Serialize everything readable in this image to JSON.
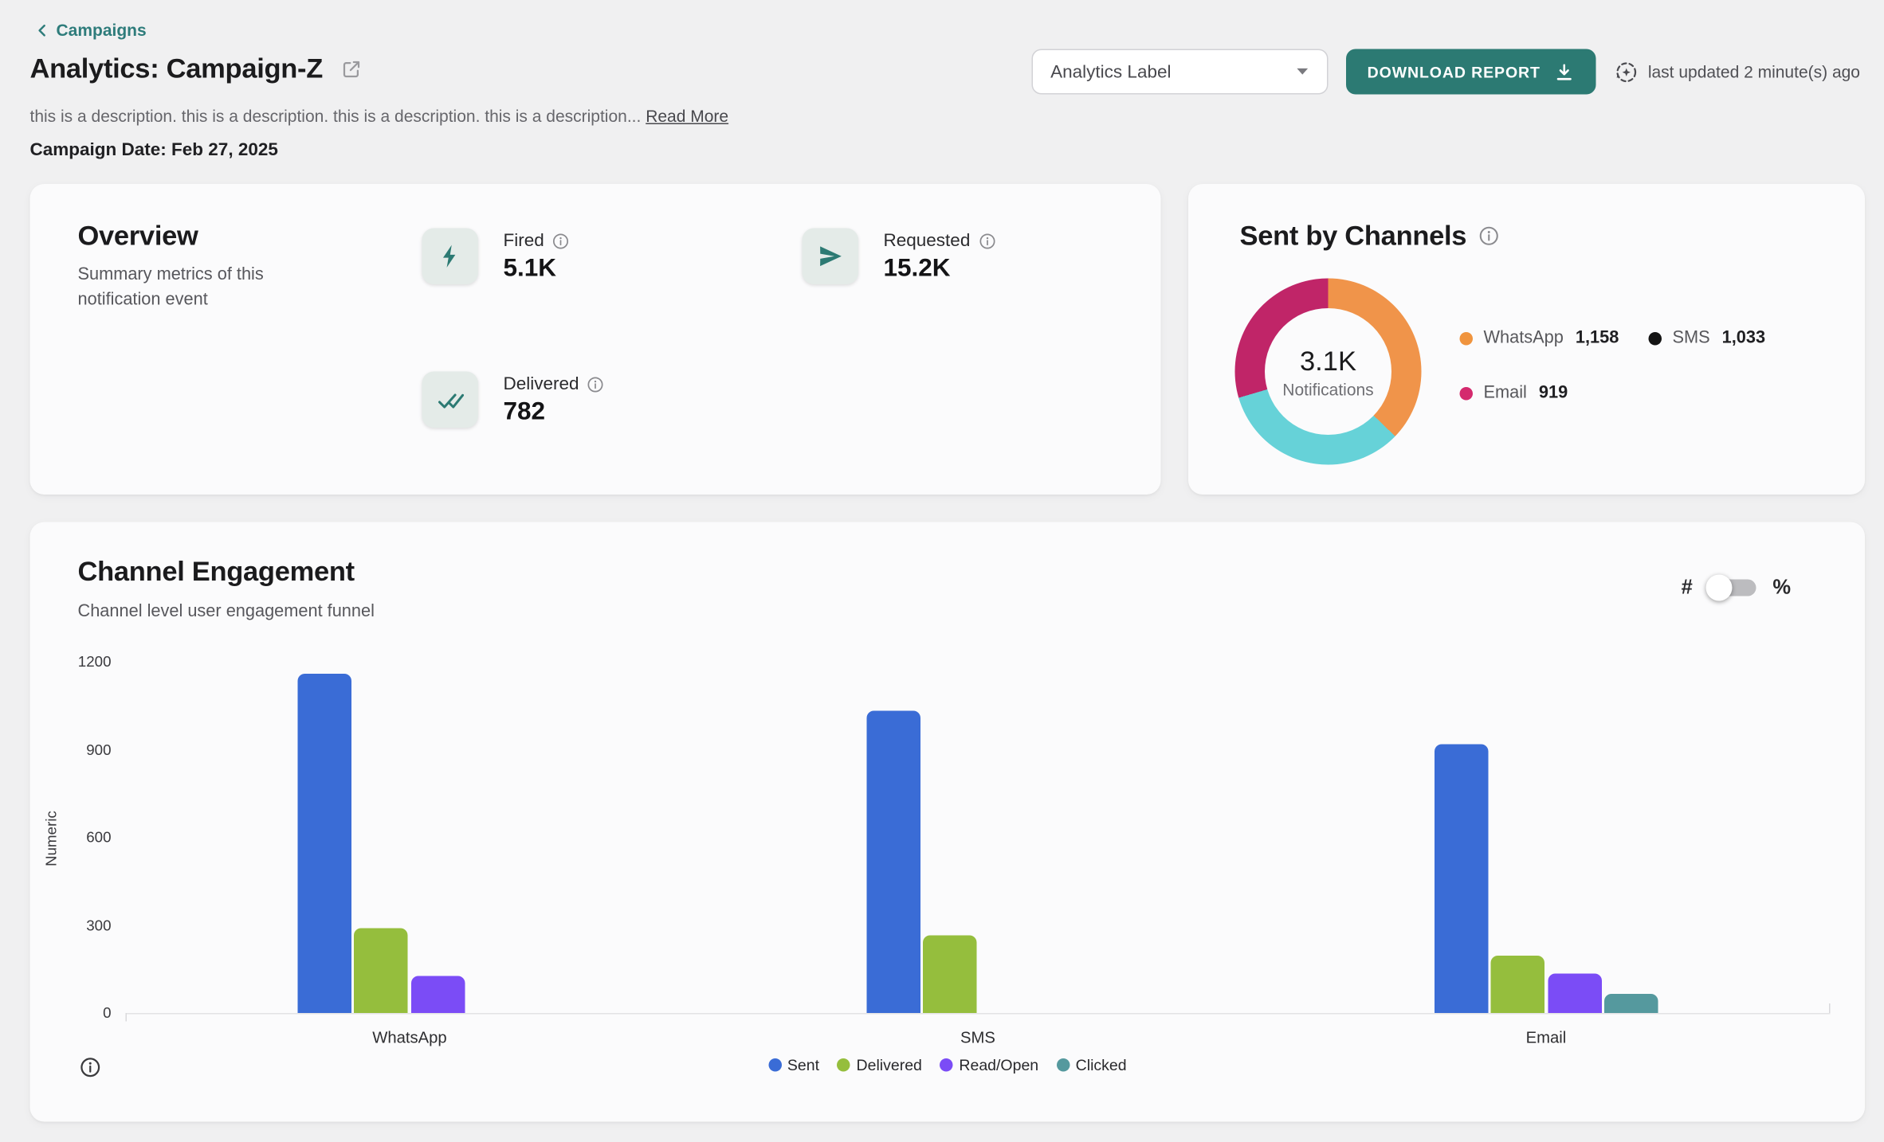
{
  "header": {
    "breadcrumb": "Campaigns",
    "title": "Analytics: Campaign-Z",
    "description": "this is a description. this is a description. this is a description. this is a description...",
    "read_more": "Read More",
    "campaign_date_label": "Campaign Date:",
    "campaign_date_value": "Feb 27, 2025",
    "analytics_label_select": "Analytics Label",
    "download_button": "DOWNLOAD REPORT",
    "last_updated": "last updated 2 minute(s) ago"
  },
  "overview": {
    "title": "Overview",
    "subtitle": "Summary metrics of this notification event",
    "metrics": [
      {
        "label": "Fired",
        "value": "5.1K",
        "icon": "lightning-icon"
      },
      {
        "label": "Requested",
        "value": "15.2K",
        "icon": "send-icon"
      },
      {
        "label": "Delivered",
        "value": "782",
        "icon": "double-check-icon"
      }
    ]
  },
  "sent_by_channels": {
    "title": "Sent by Channels",
    "center_value": "3.1K",
    "center_label": "Notifications",
    "legend": [
      {
        "label": "WhatsApp",
        "value": "1,158",
        "dot_color": "#F0943E"
      },
      {
        "label": "SMS",
        "value": "1,033",
        "dot_color": "#141414"
      },
      {
        "label": "Email",
        "value": "919",
        "dot_color": "#D42A6E"
      }
    ]
  },
  "channel_engagement": {
    "title": "Channel Engagement",
    "subtitle": "Channel level user engagement funnel",
    "toggle_left": "#",
    "toggle_right": "%",
    "toggle_state": "off"
  },
  "colors": {
    "brand_teal": "#2C7A73",
    "page_background": "#F0F0F1",
    "card_background": "#FBFBFC"
  },
  "chart_data": [
    {
      "type": "pie",
      "title": "Sent by Channels",
      "labels": [
        "WhatsApp",
        "SMS",
        "Email"
      ],
      "values": [
        1158,
        1033,
        919
      ],
      "colors": [
        "#F0944A",
        "#66D2D8",
        "#C02568"
      ],
      "total_label": "3.1K Notifications",
      "legend_position": "right",
      "donut": true
    },
    {
      "type": "bar",
      "title": "Channel Engagement",
      "categories": [
        "WhatsApp",
        "SMS",
        "Email"
      ],
      "series": [
        {
          "name": "Sent",
          "color": "#3A6CD6",
          "values": [
            1158,
            1033,
            919
          ]
        },
        {
          "name": "Delivered",
          "color": "#95BE3D",
          "values": [
            290,
            265,
            195
          ]
        },
        {
          "name": "Read/Open",
          "color": "#7B4CF6",
          "values": [
            125,
            0,
            135
          ]
        },
        {
          "name": "Clicked",
          "color": "#55999E",
          "values": [
            0,
            0,
            65
          ]
        }
      ],
      "xlabel": "",
      "ylabel": "Numeric",
      "ylim": [
        0,
        1200
      ],
      "yticks": [
        0,
        300,
        600,
        900,
        1200
      ],
      "grid": false,
      "legend_position": "bottom"
    }
  ]
}
